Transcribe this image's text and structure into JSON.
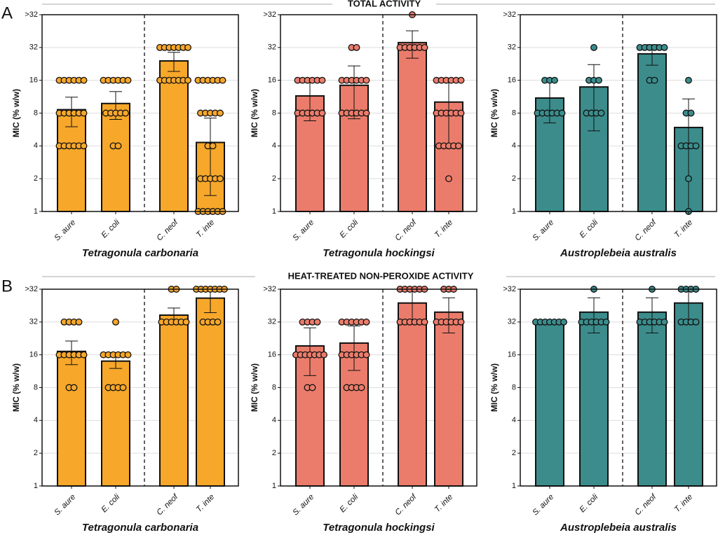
{
  "sections": [
    {
      "letter": "A",
      "title": "TOTAL ACTIVITY"
    },
    {
      "letter": "B",
      "title": "HEAT-TREATED NON-PEROXIDE ACTIVITY"
    }
  ],
  "chart_data": [
    {
      "type": "bar",
      "xlabel": "Tetragonula carbonaria",
      "ylabel": "MIC (% w/w)",
      "color": "#f7a72a",
      "log_base": 2,
      "grid": true,
      "categories": [
        "S. aure",
        "E. coli",
        "C. neof",
        "T. inte"
      ],
      "ylim": [
        1,
        64
      ],
      "yticks": [
        1,
        2,
        4,
        8,
        16,
        32,
        {
          "value": 64,
          "label": ">32"
        }
      ],
      "values": [
        8.6,
        9.8,
        24.1,
        4.3
      ],
      "errors": [
        2.6,
        2.8,
        4.8,
        2.9
      ],
      "points": [
        [
          16,
          16,
          16,
          16,
          16,
          16,
          8,
          8,
          8,
          8,
          8,
          8,
          4,
          4,
          4,
          4,
          4,
          4
        ],
        [
          16,
          16,
          16,
          16,
          16,
          16,
          8,
          8,
          8,
          8,
          8,
          4,
          4
        ],
        [
          32,
          32,
          32,
          32,
          32,
          32,
          32,
          16,
          16,
          16,
          16,
          16,
          16,
          16
        ],
        [
          16,
          16,
          16,
          16,
          16,
          16,
          8,
          8,
          8,
          8,
          8,
          4,
          4,
          2,
          2,
          2,
          2,
          2,
          1,
          1,
          1,
          1,
          1,
          1
        ]
      ]
    },
    {
      "type": "bar",
      "xlabel": "Tetragonula hockingsi",
      "ylabel": "MIC (% w/w)",
      "color": "#eb7c6b",
      "log_base": 2,
      "grid": true,
      "categories": [
        "S. aure",
        "E. coli",
        "C. neof",
        "T. inte"
      ],
      "ylim": [
        1,
        64
      ],
      "yticks": [
        1,
        2,
        4,
        8,
        16,
        32,
        {
          "value": 64,
          "label": ">32"
        }
      ],
      "values": [
        11.5,
        14.4,
        35.5,
        10.1
      ],
      "errors": [
        4.7,
        7.3,
        10,
        6
      ],
      "points": [
        [
          16,
          16,
          16,
          16,
          16,
          16,
          8,
          8,
          8,
          8,
          8,
          8
        ],
        [
          32,
          32,
          16,
          16,
          16,
          16,
          16,
          16,
          8,
          8,
          8,
          8,
          8,
          8
        ],
        [
          64,
          32,
          32,
          32,
          32,
          32,
          32
        ],
        [
          16,
          16,
          16,
          16,
          16,
          16,
          8,
          8,
          8,
          8,
          8,
          8,
          4,
          4,
          4,
          4,
          4,
          2
        ]
      ]
    },
    {
      "type": "bar",
      "xlabel": "Austroplebeia australis",
      "ylabel": "MIC (% w/w)",
      "color": "#3c8c8c",
      "log_base": 2,
      "grid": true,
      "categories": [
        "S. aure",
        "E. coli",
        "C. neof",
        "T. inte"
      ],
      "ylim": [
        1,
        64
      ],
      "yticks": [
        1,
        2,
        4,
        8,
        16,
        32,
        {
          "value": 64,
          "label": ">32"
        }
      ],
      "values": [
        11,
        13.9,
        28,
        5.9
      ],
      "errors": [
        4.5,
        8.4,
        6,
        4.9
      ],
      "points": [
        [
          16,
          16,
          16,
          8,
          8,
          8,
          8,
          8,
          8
        ],
        [
          32,
          16,
          16,
          16,
          8,
          8,
          8,
          8
        ],
        [
          32,
          32,
          32,
          32,
          32,
          32,
          16,
          16
        ],
        [
          16,
          8,
          8,
          4,
          4,
          4,
          4,
          2,
          1
        ]
      ]
    },
    {
      "type": "bar",
      "xlabel": "Tetragonula carbonaria",
      "ylabel": "MIC (% w/w)",
      "color": "#f7a72a",
      "log_base": 2,
      "grid": true,
      "categories": [
        "S. aure",
        "E. coli",
        "C. neof",
        "T. inte"
      ],
      "ylim": [
        1,
        64
      ],
      "yticks": [
        1,
        2,
        4,
        8,
        16,
        32,
        {
          "value": 64,
          "label": ">32"
        }
      ],
      "values": [
        17.2,
        14,
        37,
        53
      ],
      "errors": [
        4.2,
        2,
        6,
        14
      ],
      "points": [
        [
          32,
          32,
          32,
          32,
          16,
          16,
          16,
          16,
          16,
          16,
          8,
          8
        ],
        [
          32,
          16,
          16,
          16,
          16,
          16,
          16,
          8,
          8,
          8,
          8
        ],
        [
          64,
          64,
          32,
          32,
          32,
          32,
          32,
          32
        ],
        [
          64,
          64,
          64,
          64,
          64,
          64,
          64,
          32,
          32,
          32,
          32
        ]
      ]
    },
    {
      "type": "bar",
      "xlabel": "Tetragonula hockingsi",
      "ylabel": "MIC (% w/w)",
      "color": "#eb7c6b",
      "log_base": 2,
      "grid": true,
      "categories": [
        "S. aure",
        "E. coli",
        "C. neof",
        "T. inte"
      ],
      "ylim": [
        1,
        64
      ],
      "yticks": [
        1,
        2,
        4,
        8,
        16,
        32,
        {
          "value": 64,
          "label": ">32"
        }
      ],
      "values": [
        19.3,
        20.5,
        47.8,
        39.4
      ],
      "errors": [
        9,
        9,
        16,
        14
      ],
      "points": [
        [
          32,
          32,
          32,
          32,
          16,
          16,
          16,
          16,
          16,
          16,
          16,
          8,
          8
        ],
        [
          32,
          32,
          32,
          32,
          32,
          32,
          16,
          16,
          16,
          16,
          16,
          16,
          8,
          8,
          8,
          8
        ],
        [
          64,
          64,
          64,
          64,
          64,
          64,
          32,
          32,
          32,
          32,
          32,
          32
        ],
        [
          64,
          64,
          64,
          32,
          32,
          32,
          32,
          32,
          32
        ]
      ]
    },
    {
      "type": "bar",
      "xlabel": "Austroplebeia australis",
      "ylabel": "MIC (% w/w)",
      "color": "#3c8c8c",
      "log_base": 2,
      "grid": true,
      "categories": [
        "S. aure",
        "E. coli",
        "C. neof",
        "T. inte"
      ],
      "ylim": [
        1,
        64
      ],
      "yticks": [
        1,
        2,
        4,
        8,
        16,
        32,
        {
          "value": 64,
          "label": ">32"
        }
      ],
      "values": [
        32,
        39.4,
        39.4,
        47.8
      ],
      "errors": [
        0,
        14,
        14,
        16
      ],
      "points": [
        [
          32,
          32,
          32,
          32,
          32,
          32,
          32
        ],
        [
          64,
          32,
          32,
          32,
          32,
          32,
          32
        ],
        [
          64,
          32,
          32,
          32,
          32,
          32,
          32
        ],
        [
          64,
          64,
          64,
          64,
          32,
          32,
          32,
          32
        ]
      ]
    }
  ]
}
